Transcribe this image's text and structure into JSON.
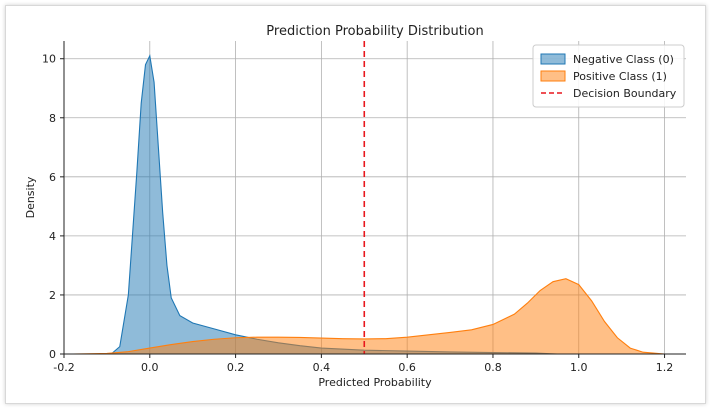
{
  "chart_data": {
    "type": "area",
    "title": "Prediction Probability Distribution",
    "xlabel": "Predicted Probability",
    "ylabel": "Density",
    "xlim": [
      -0.2,
      1.25
    ],
    "ylim": [
      0,
      10.6
    ],
    "xticks": [
      "-0.2",
      "0.0",
      "0.2",
      "0.4",
      "0.6",
      "0.8",
      "1.0",
      "1.2"
    ],
    "xtick_values": [
      -0.2,
      0.0,
      0.2,
      0.4,
      0.6,
      0.8,
      1.0,
      1.2
    ],
    "yticks": [
      "0",
      "2",
      "4",
      "6",
      "8",
      "10"
    ],
    "ytick_values": [
      0,
      2,
      4,
      6,
      8,
      10
    ],
    "grid": true,
    "legend_position": "top-right",
    "series": [
      {
        "name": "Negative Class (0)",
        "color": "#1f77b4",
        "x": [
          -0.09,
          -0.07,
          -0.05,
          -0.03,
          -0.02,
          -0.01,
          0.0,
          0.01,
          0.02,
          0.03,
          0.04,
          0.05,
          0.07,
          0.1,
          0.15,
          0.2,
          0.25,
          0.3,
          0.35,
          0.4,
          0.5,
          0.6,
          0.7,
          0.8,
          0.9,
          0.95
        ],
        "y": [
          0.0,
          0.25,
          2.0,
          6.2,
          8.5,
          9.8,
          10.1,
          9.2,
          7.0,
          4.8,
          3.0,
          1.9,
          1.3,
          1.05,
          0.85,
          0.65,
          0.5,
          0.38,
          0.28,
          0.2,
          0.13,
          0.1,
          0.07,
          0.05,
          0.03,
          0.0
        ]
      },
      {
        "name": "Positive Class (1)",
        "color": "#ff7f0e",
        "x": [
          -0.18,
          -0.1,
          -0.05,
          0.0,
          0.05,
          0.1,
          0.15,
          0.2,
          0.25,
          0.3,
          0.35,
          0.4,
          0.45,
          0.5,
          0.55,
          0.6,
          0.65,
          0.7,
          0.75,
          0.8,
          0.85,
          0.88,
          0.91,
          0.94,
          0.97,
          1.0,
          1.03,
          1.06,
          1.09,
          1.12,
          1.15,
          1.2
        ],
        "y": [
          0.0,
          0.02,
          0.08,
          0.2,
          0.32,
          0.42,
          0.5,
          0.55,
          0.57,
          0.57,
          0.56,
          0.54,
          0.52,
          0.51,
          0.52,
          0.57,
          0.65,
          0.73,
          0.82,
          1.0,
          1.35,
          1.72,
          2.15,
          2.45,
          2.55,
          2.35,
          1.8,
          1.1,
          0.55,
          0.2,
          0.06,
          0.0
        ]
      }
    ],
    "vline": {
      "name": "Decision Boundary",
      "x": 0.5,
      "color": "#e8171d"
    }
  }
}
